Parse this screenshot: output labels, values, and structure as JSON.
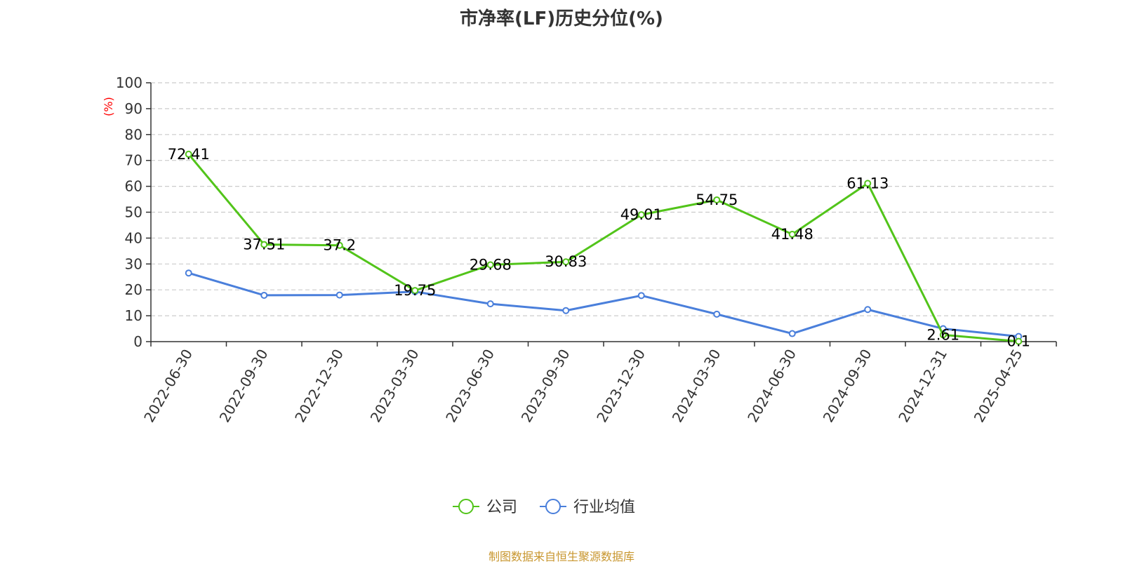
{
  "chart_data": {
    "type": "line",
    "title": "市净率(LF)历史分位(%)",
    "ylabel": "(%)",
    "ylim": [
      0,
      100
    ],
    "yticks": [
      0,
      10,
      20,
      30,
      40,
      50,
      60,
      70,
      80,
      90,
      100
    ],
    "grid": "horizontal-dashed",
    "legend_position": "bottom",
    "categories": [
      "2022-06-30",
      "2022-09-30",
      "2022-12-30",
      "2023-03-30",
      "2023-06-30",
      "2023-09-30",
      "2023-12-30",
      "2024-03-30",
      "2024-06-30",
      "2024-09-30",
      "2024-12-31",
      "2025-04-25"
    ],
    "series": [
      {
        "name": "公司",
        "color": "#52c41a",
        "values": [
          72.41,
          37.51,
          37.2,
          19.75,
          29.68,
          30.83,
          49.01,
          54.75,
          41.48,
          61.13,
          2.61,
          0.1
        ],
        "labels": [
          "72.41",
          "37.51",
          "37.2",
          "19.75",
          "29.68",
          "30.83",
          "49.01",
          "54.75",
          "41.48",
          "61.13",
          "2.61",
          "0.1"
        ]
      },
      {
        "name": "行业均值",
        "color": "#4a7fdb",
        "values": [
          26.5,
          17.9,
          18.0,
          19.3,
          14.6,
          12.0,
          17.8,
          10.6,
          3.1,
          12.4,
          5.0,
          2.0
        ]
      }
    ]
  },
  "source_note": "制图数据来自恒生聚源数据库"
}
